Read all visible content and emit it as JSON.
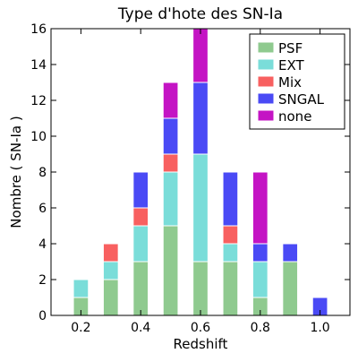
{
  "chart_data": {
    "type": "bar",
    "title": "Type d'hote des SN-Ia",
    "xlabel": "Redshift",
    "ylabel": "Nombre ( SN-Ia )",
    "xlim": [
      0.1,
      1.1
    ],
    "ylim": [
      0,
      16
    ],
    "bar_width": 0.05,
    "x": [
      0.2,
      0.3,
      0.4,
      0.5,
      0.6,
      0.7,
      0.8,
      0.9,
      1.0
    ],
    "xticks": [
      "0.2",
      "0.4",
      "0.6",
      "0.8",
      "1.0"
    ],
    "xtick_values": [
      0.2,
      0.4,
      0.6,
      0.8,
      1.0
    ],
    "yticks": [
      "0",
      "2",
      "4",
      "6",
      "8",
      "10",
      "12",
      "14",
      "16"
    ],
    "ytick_values": [
      0,
      2,
      4,
      6,
      8,
      10,
      12,
      14,
      16
    ],
    "stacked": true,
    "legend_position": "top-right",
    "series": [
      {
        "name": "PSF",
        "color": "#8fca8f",
        "values": [
          1,
          2,
          3,
          5,
          3,
          3,
          1,
          3,
          0
        ]
      },
      {
        "name": "EXT",
        "color": "#7addd9",
        "values": [
          1,
          1,
          2,
          3,
          6,
          1,
          2,
          0,
          0
        ]
      },
      {
        "name": "Mix",
        "color": "#f86060",
        "values": [
          0,
          1,
          1,
          1,
          0,
          1,
          0,
          0,
          0
        ]
      },
      {
        "name": "SNGAL",
        "color": "#4a4af5",
        "values": [
          0,
          0,
          2,
          2,
          4,
          3,
          1,
          1,
          1
        ]
      },
      {
        "name": "none",
        "color": "#c414c4",
        "values": [
          0,
          0,
          0,
          2,
          3,
          0,
          4,
          0,
          0
        ]
      }
    ]
  }
}
